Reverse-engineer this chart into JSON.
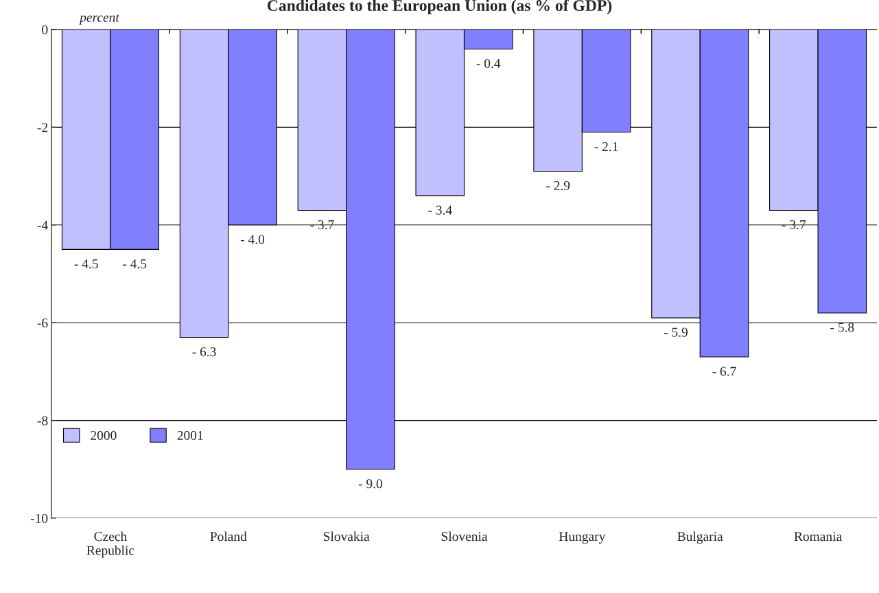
{
  "chart_data": {
    "type": "bar",
    "title": "Candidates to the European Union (as % of GDP)",
    "ylabel": "percent",
    "categories": [
      "Czech\nRepublic",
      "Poland",
      "Slovakia",
      "Slovenia",
      "Hungary",
      "Bulgaria",
      "Romania"
    ],
    "series": [
      {
        "name": "2000",
        "color": "#c0c0ff",
        "values": [
          -4.5,
          -6.3,
          -3.7,
          -3.4,
          -2.9,
          -5.9,
          -3.7
        ],
        "value_labels": [
          "- 4.5",
          "- 6.3",
          "- 3.7",
          "- 3.4",
          "- 2.9",
          "- 5.9",
          "- 3.7"
        ]
      },
      {
        "name": "2001",
        "color": "#8080ff",
        "values": [
          -4.5,
          -4.0,
          -9.0,
          -0.4,
          -2.1,
          -6.7,
          -5.8
        ],
        "value_labels": [
          "- 4.5",
          "- 4.0",
          "- 9.0",
          "- 0.4",
          "- 2.1",
          "- 6.7",
          "- 5.8"
        ]
      }
    ],
    "ylim": [
      -10,
      0
    ],
    "yticks": [
      0,
      -2,
      -4,
      -6,
      -8,
      -10
    ],
    "grid": "y",
    "legend": "bottom left"
  }
}
